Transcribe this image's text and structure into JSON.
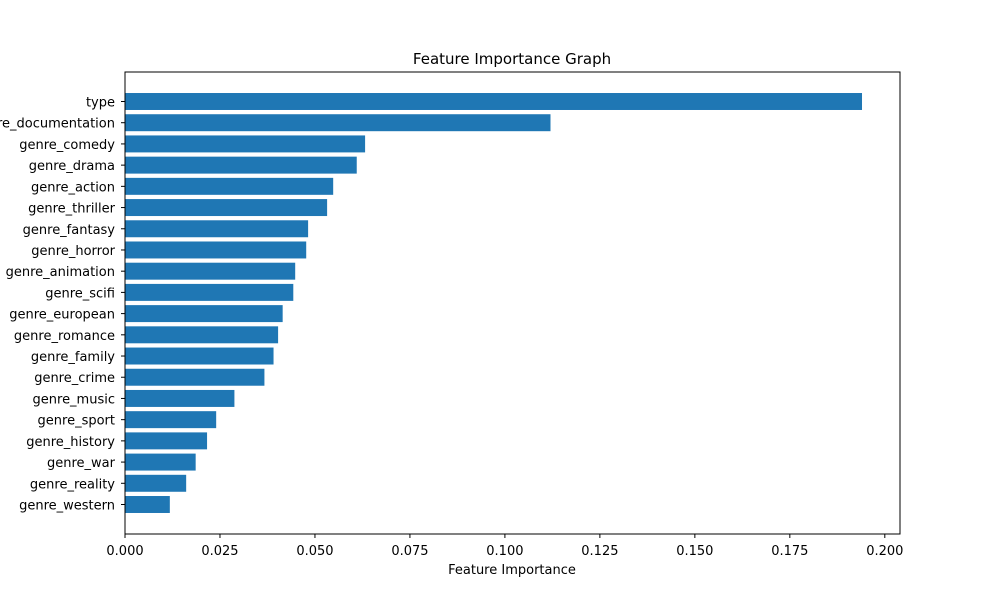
{
  "chart_data": {
    "type": "bar",
    "orientation": "horizontal",
    "title": "Feature Importance Graph",
    "xlabel": "Feature Importance",
    "ylabel": "",
    "xlim": [
      0.0,
      0.204
    ],
    "xticks": [
      "0.000",
      "0.025",
      "0.050",
      "0.075",
      "0.100",
      "0.125",
      "0.150",
      "0.175",
      "0.200"
    ],
    "grid": false,
    "bar_color": "#1f77b4",
    "categories": [
      "genre_western",
      "genre_reality",
      "genre_war",
      "genre_history",
      "genre_sport",
      "genre_music",
      "genre_crime",
      "genre_family",
      "genre_romance",
      "genre_european",
      "genre_scifi",
      "genre_animation",
      "genre_horror",
      "genre_fantasy",
      "genre_thriller",
      "genre_action",
      "genre_drama",
      "genre_comedy",
      "genre_documentation",
      "type"
    ],
    "values": [
      0.0118,
      0.0161,
      0.0186,
      0.0216,
      0.024,
      0.0288,
      0.0367,
      0.0391,
      0.0403,
      0.0415,
      0.0443,
      0.0448,
      0.0477,
      0.0482,
      0.0532,
      0.0548,
      0.061,
      0.0632,
      0.112,
      0.194
    ]
  }
}
